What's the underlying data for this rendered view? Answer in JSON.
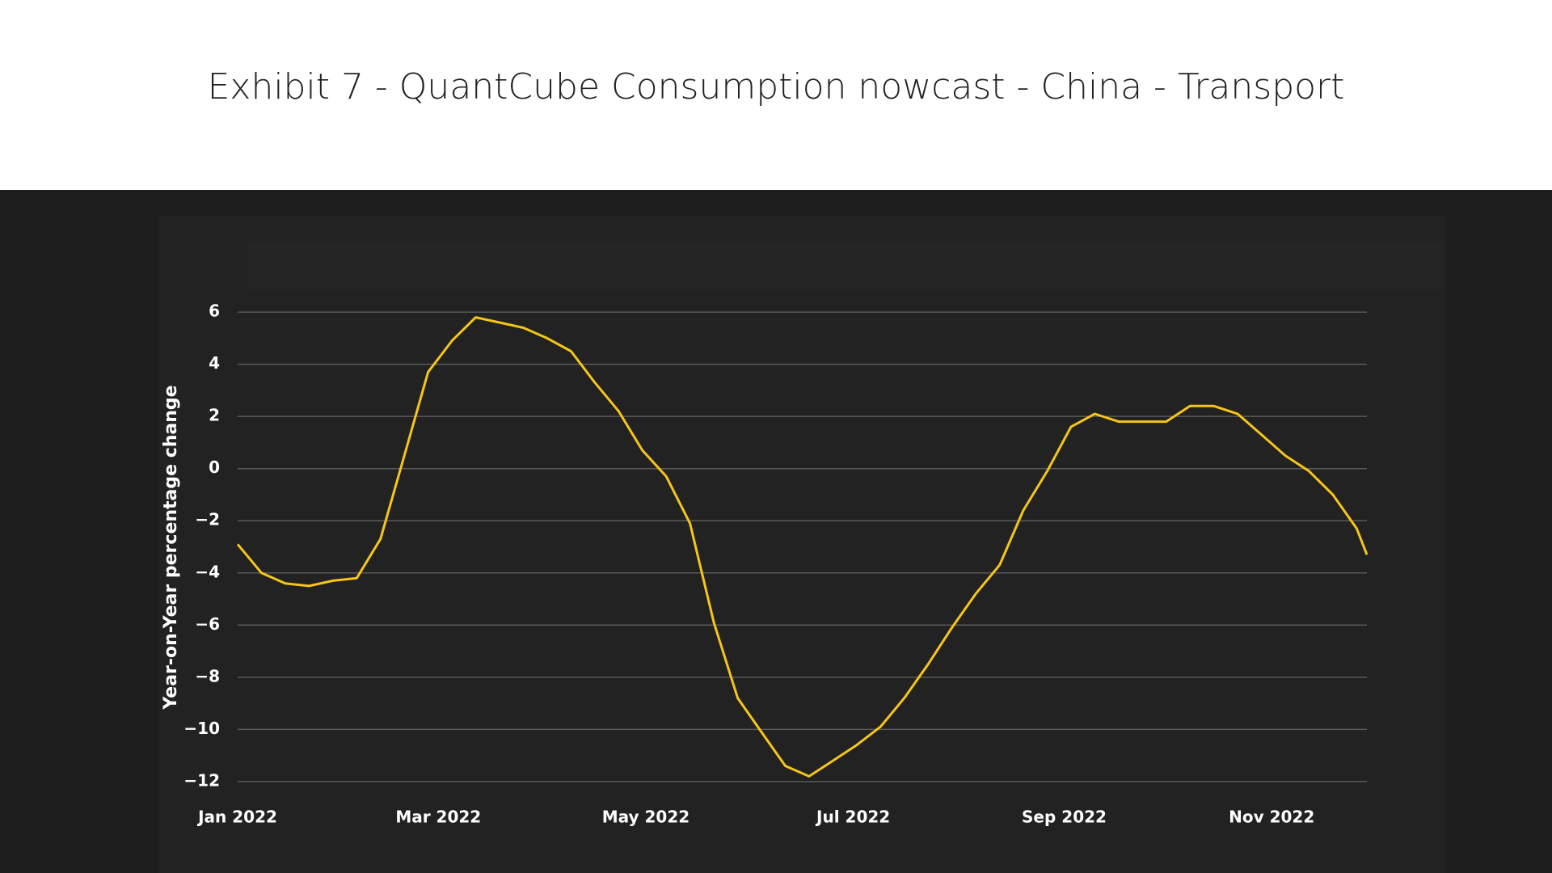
{
  "chart_data": {
    "type": "line",
    "title": "Exhibit 7 - QuantCube Consumption nowcast - China - Transport",
    "y_label": "Year-on-Year percentage change",
    "x": [
      "2022-01-01",
      "2022-01-08",
      "2022-01-15",
      "2022-01-22",
      "2022-01-29",
      "2022-02-05",
      "2022-02-12",
      "2022-02-19",
      "2022-02-26",
      "2022-03-05",
      "2022-03-12",
      "2022-03-19",
      "2022-03-26",
      "2022-04-02",
      "2022-04-09",
      "2022-04-16",
      "2022-04-23",
      "2022-04-30",
      "2022-05-07",
      "2022-05-14",
      "2022-05-21",
      "2022-05-28",
      "2022-06-04",
      "2022-06-11",
      "2022-06-18",
      "2022-06-25",
      "2022-07-02",
      "2022-07-09",
      "2022-07-16",
      "2022-07-23",
      "2022-07-30",
      "2022-08-06",
      "2022-08-13",
      "2022-08-20",
      "2022-08-27",
      "2022-09-03",
      "2022-09-10",
      "2022-09-17",
      "2022-09-24",
      "2022-10-01",
      "2022-10-08",
      "2022-10-15",
      "2022-10-22",
      "2022-10-29",
      "2022-11-05",
      "2022-11-12",
      "2022-11-19",
      "2022-11-26",
      "2022-11-29"
    ],
    "series": [
      {
        "color": "#f5c518",
        "values": [
          -2.9,
          -4.0,
          -4.4,
          -4.5,
          -4.3,
          -4.2,
          -2.7,
          0.5,
          3.7,
          4.9,
          5.8,
          5.6,
          5.4,
          5.0,
          4.5,
          3.3,
          2.2,
          0.7,
          -0.3,
          -2.1,
          -5.9,
          -8.8,
          -10.1,
          -11.4,
          -11.8,
          -11.2,
          -10.6,
          -9.9,
          -8.8,
          -7.5,
          -6.1,
          -4.8,
          -3.7,
          -1.6,
          -0.1,
          1.6,
          2.1,
          1.8,
          1.8,
          1.8,
          2.4,
          2.4,
          2.1,
          1.3,
          0.5,
          -0.1,
          -1.0,
          -2.3,
          -3.3
        ]
      }
    ],
    "xlim": [
      "2022-01-01",
      "2022-11-29"
    ],
    "xticks": [
      {
        "value": "2022-01-01",
        "label": "Jan 2022"
      },
      {
        "value": "2022-03-01",
        "label": "Mar 2022"
      },
      {
        "value": "2022-05-01",
        "label": "May 2022"
      },
      {
        "value": "2022-07-01",
        "label": "Jul 2022"
      },
      {
        "value": "2022-09-01",
        "label": "Sep 2022"
      },
      {
        "value": "2022-11-01",
        "label": "Nov 2022"
      }
    ],
    "ylim": [
      -12.5,
      6.5
    ],
    "yticks": [
      6,
      4,
      2,
      0,
      {
        "value": -2,
        "label": "−2"
      },
      {
        "value": -4,
        "label": "−4"
      },
      {
        "value": -6,
        "label": "−6"
      },
      {
        "value": -8,
        "label": "−8"
      },
      {
        "value": -10,
        "label": "−10"
      },
      {
        "value": -12,
        "label": "−12"
      }
    ],
    "grid": true
  }
}
